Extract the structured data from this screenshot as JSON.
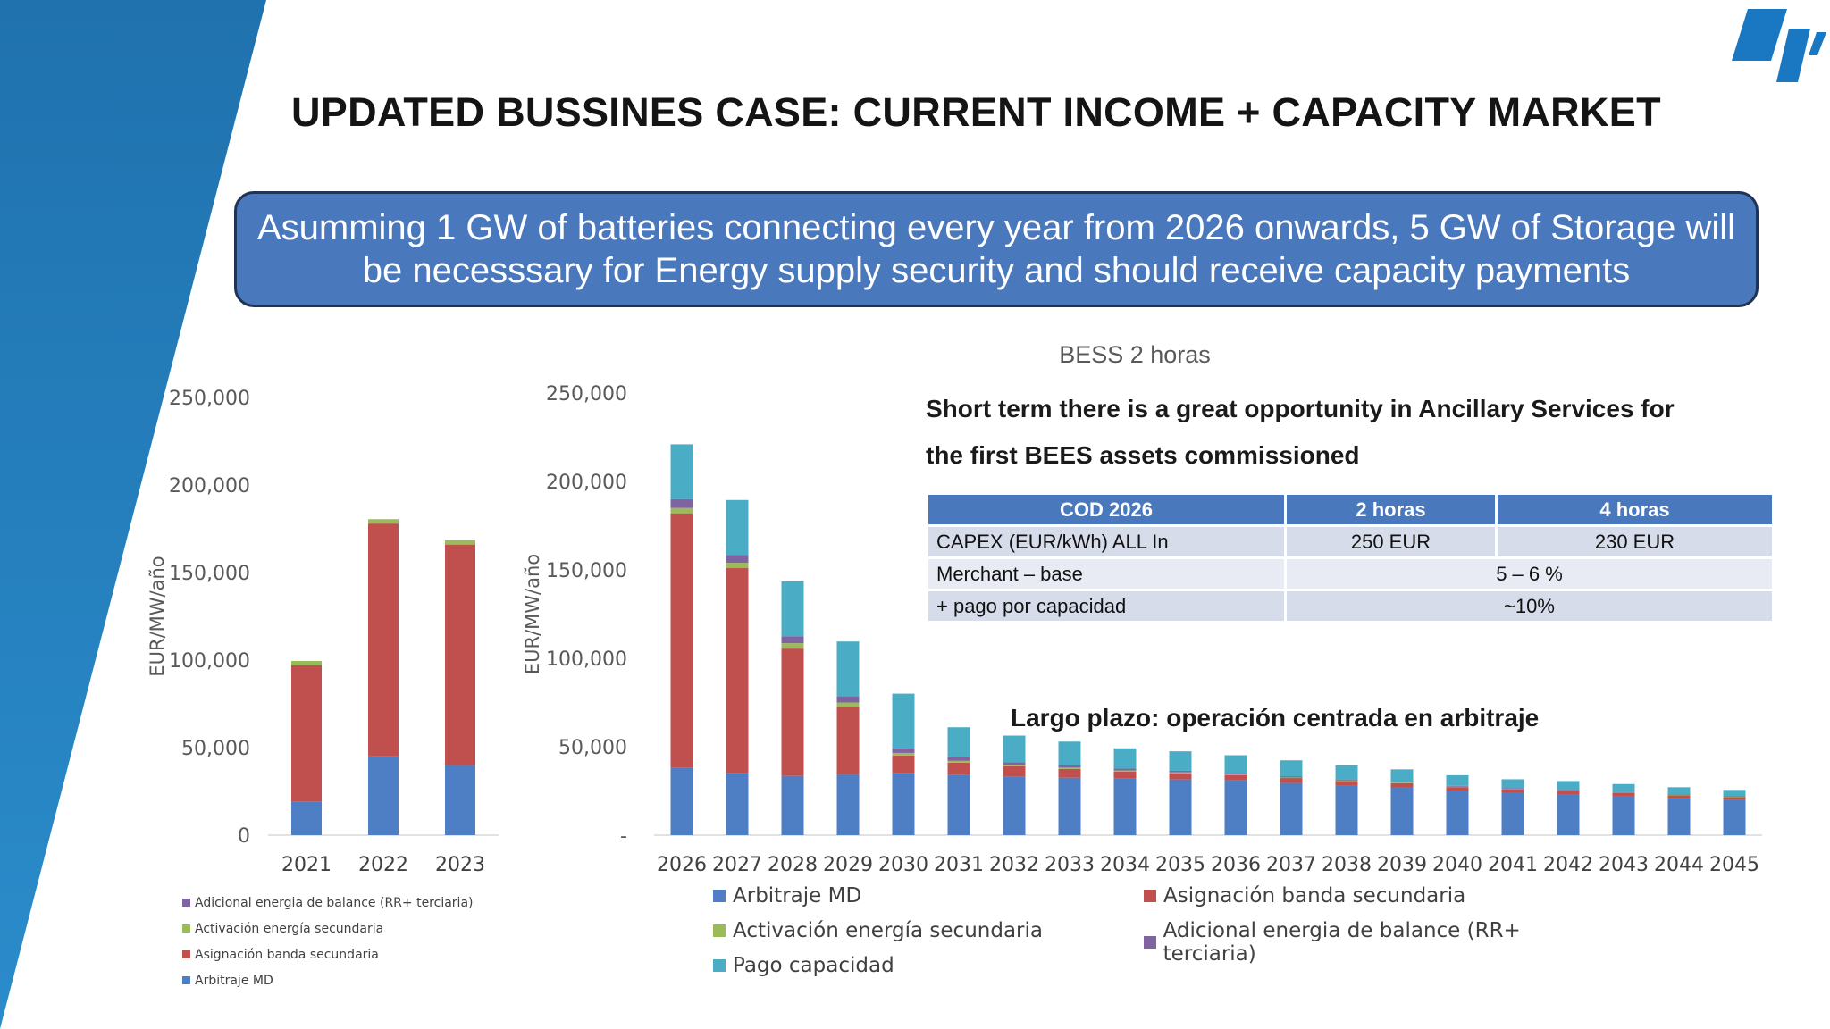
{
  "slide": {
    "title": "UPDATED BUSSINES CASE: CURRENT INCOME + CAPACITY MARKET",
    "banner_line1": "Asumming 1 GW of batteries connecting every year from 2026 onwards, 5 GW of Storage will",
    "banner_line2": "be necesssary for Energy supply security and should receive capacity payments",
    "note_short_line1": "Short term there is a great opportunity in Ancillary Services for",
    "note_short_line2": "the first BEES assets commissioned",
    "note_long": "Largo plazo: operación centrada en arbitraje"
  },
  "colors": {
    "wedge": "#2a7fbf",
    "banner_bg": "#4a78bd",
    "arbitraje": "#4e7fc5",
    "asignacion": "#c0504d",
    "activacion": "#9bbb59",
    "adicional": "#8064a2",
    "pago": "#4bacc6"
  },
  "info_table": {
    "headers": [
      "COD 2026",
      "2 horas",
      "4 horas"
    ],
    "rows": [
      {
        "label": "CAPEX (EUR/kWh) ALL In",
        "h2": "250 EUR",
        "h4": "230 EUR"
      },
      {
        "label": "Merchant – base",
        "merged": "5 – 6 %"
      },
      {
        "label": "+ pago por capacidad",
        "merged": "~10%"
      }
    ]
  },
  "chart_data": [
    {
      "type": "bar",
      "stacked": true,
      "title": "",
      "ylabel": "EUR/MW/año",
      "ylim": [
        0,
        250000
      ],
      "yticks": [
        "0",
        "50,000",
        "100,000",
        "150,000",
        "200,000",
        "250,000"
      ],
      "categories": [
        "2021",
        "2022",
        "2023"
      ],
      "legend_position": "bottom-left",
      "legend_order": [
        "Adicional energia de balance (RR+ terciaria)",
        "Activación energía secundaria",
        "Asignación banda secundaria",
        "Arbitraje MD"
      ],
      "series": [
        {
          "name": "Arbitraje MD",
          "color": "#4e7fc5",
          "values": [
            19000,
            45000,
            40000
          ]
        },
        {
          "name": "Asignación banda secundaria",
          "color": "#c0504d",
          "values": [
            78000,
            133000,
            126000
          ]
        },
        {
          "name": "Activación energía secundaria",
          "color": "#9bbb59",
          "values": [
            2500,
            2500,
            2500
          ]
        },
        {
          "name": "Adicional energia de balance (RR+ terciaria)",
          "color": "#8064a2",
          "values": [
            0,
            0,
            0
          ]
        }
      ]
    },
    {
      "type": "bar",
      "stacked": true,
      "title": "BESS 2 horas",
      "ylabel": "EUR/MW/año",
      "ylim": [
        0,
        250000
      ],
      "yticks": [
        "-",
        "50,000",
        "100,000",
        "150,000",
        "200,000",
        "250,000"
      ],
      "categories": [
        "2026",
        "2027",
        "2028",
        "2029",
        "2030",
        "2031",
        "2032",
        "2033",
        "2034",
        "2035",
        "2036",
        "2037",
        "2038",
        "2039",
        "2040",
        "2041",
        "2042",
        "2043",
        "2044",
        "2045"
      ],
      "legend_position": "bottom",
      "series": [
        {
          "name": "Arbitraje MD",
          "color": "#4e7fc5",
          "values": [
            38000,
            35000,
            33500,
            34500,
            35000,
            34000,
            33000,
            32500,
            32000,
            31500,
            31000,
            29500,
            28000,
            27000,
            25000,
            24000,
            23000,
            22000,
            21000,
            20000
          ]
        },
        {
          "name": "Asignación banda secundaria",
          "color": "#c0504d",
          "values": [
            144000,
            116000,
            72000,
            38000,
            10000,
            7000,
            6000,
            5000,
            4000,
            3500,
            3000,
            2800,
            2600,
            2400,
            2200,
            2000,
            2000,
            1800,
            1500,
            1500
          ]
        },
        {
          "name": "Activación energía secundaria",
          "color": "#9bbb59",
          "values": [
            3000,
            3000,
            3000,
            2500,
            1500,
            1000,
            800,
            700,
            600,
            500,
            400,
            300,
            300,
            300,
            200,
            200,
            200,
            200,
            200,
            200
          ]
        },
        {
          "name": "Adicional energia de balance (RR+ terciaria)",
          "color": "#8064a2",
          "values": [
            5000,
            4500,
            4000,
            3500,
            2500,
            2000,
            1500,
            1200,
            1000,
            900,
            800,
            700,
            600,
            500,
            500,
            400,
            400,
            400,
            400,
            400
          ]
        },
        {
          "name": "Pago capacidad",
          "color": "#4bacc6",
          "values": [
            31000,
            31000,
            31000,
            31000,
            31000,
            17000,
            15000,
            13500,
            11500,
            11000,
            10000,
            9000,
            8000,
            7000,
            6000,
            5000,
            5000,
            4500,
            4000,
            3500
          ]
        }
      ]
    }
  ]
}
